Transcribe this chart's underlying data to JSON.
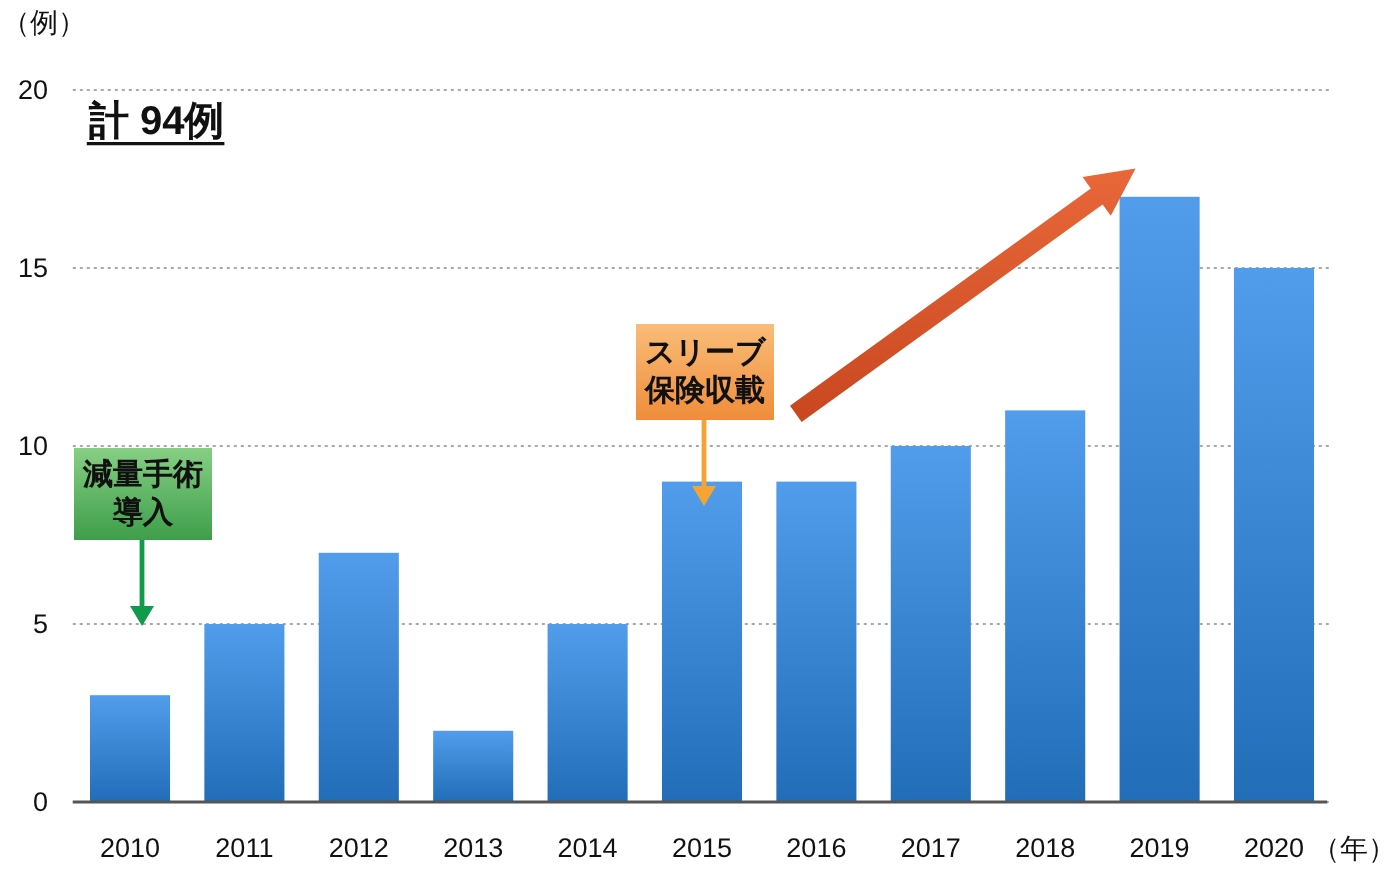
{
  "chart_data": {
    "type": "bar",
    "categories": [
      "2010",
      "2011",
      "2012",
      "2013",
      "2014",
      "2015",
      "2016",
      "2017",
      "2018",
      "2019",
      "2020"
    ],
    "values": [
      3,
      5,
      7,
      2,
      5,
      9,
      9,
      10,
      11,
      17,
      15
    ],
    "color": "#2b88e6",
    "ylim": [
      0,
      20
    ],
    "yticks": [
      0,
      5,
      10,
      15,
      20
    ],
    "grid": "y",
    "xlabel": "（年）",
    "ylabel": "（例）",
    "annotations": [
      "計 94例",
      "減量手術導入",
      "スリーブ保険収載"
    ]
  }
}
